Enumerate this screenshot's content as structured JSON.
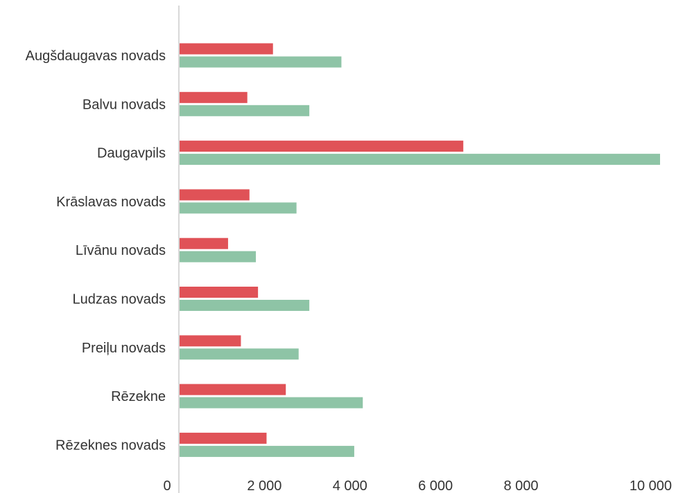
{
  "chart_data": {
    "type": "bar",
    "orientation": "horizontal",
    "categories": [
      "Augšdaugavas novads",
      "Balvu novads",
      "Daugavpils",
      "Krāslavas novads",
      "Līvānu novads",
      "Ludzas novads",
      "Preiļu novads",
      "Rēzekne",
      "Rēzeknes novads"
    ],
    "series": [
      {
        "values": [
          2200,
          1600,
          6650,
          1650,
          1150,
          1850,
          1450,
          2500,
          2050
        ],
        "color": "#e05257"
      },
      {
        "values": [
          3800,
          3050,
          11250,
          2750,
          1800,
          3050,
          2800,
          4300,
          4100
        ],
        "color": "#8ec4a6"
      }
    ],
    "xlim": [
      0,
      11250
    ],
    "xticks": [
      0,
      2000,
      4000,
      6000,
      8000,
      10000
    ],
    "xtick_labels": [
      "0",
      "2 000",
      "4 000",
      "6 000",
      "8 000",
      "10 000"
    ],
    "grid": false,
    "legend": "none",
    "title": "",
    "xlabel": "",
    "ylabel": ""
  }
}
